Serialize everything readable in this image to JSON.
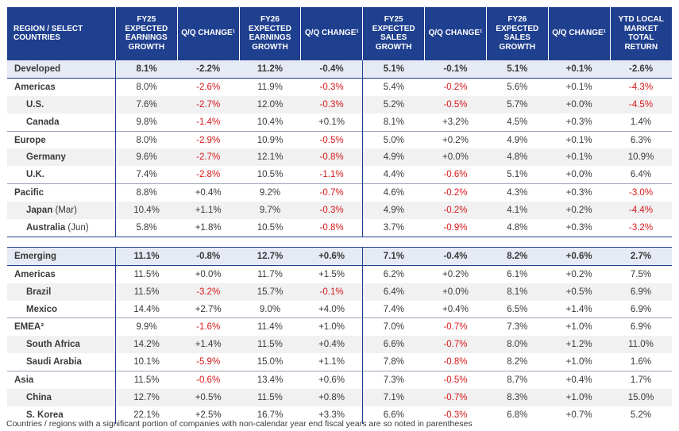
{
  "headers": [
    "REGION / SELECT COUNTRIES",
    "FY25 EXPECTED EARNINGS GROWTH",
    "Q/Q CHANGE¹",
    "FY26 EXPECTED EARNINGS GROWTH",
    "Q/Q CHANGE¹",
    "FY25 EXPECTED SALES GROWTH",
    "Q/Q CHANGE¹",
    "FY26 EXPECTED SALES GROWTH",
    "Q/Q CHANGE¹",
    "YTD LOCAL MARKET TOTAL RETURN"
  ],
  "sections": [
    {
      "summary": {
        "label": "Developed",
        "values": [
          "8.1%",
          "-2.2%",
          "11.2%",
          "-0.4%",
          "5.1%",
          "-0.1%",
          "5.1%",
          "+0.1%",
          "-2.6%"
        ]
      },
      "groups": [
        {
          "rows": [
            {
              "label": "Americas",
              "suffix": "",
              "level": 0,
              "values": [
                "8.0%",
                "-2.6%",
                "11.9%",
                "-0.3%",
                "5.4%",
                "-0.2%",
                "5.6%",
                "+0.1%",
                "-4.3%"
              ]
            },
            {
              "label": "U.S.",
              "suffix": "",
              "level": 1,
              "values": [
                "7.6%",
                "-2.7%",
                "12.0%",
                "-0.3%",
                "5.2%",
                "-0.5%",
                "5.7%",
                "+0.0%",
                "-4.5%"
              ]
            },
            {
              "label": "Canada",
              "suffix": "",
              "level": 1,
              "values": [
                "9.8%",
                "-1.4%",
                "10.4%",
                "+0.1%",
                "8.1%",
                "+3.2%",
                "4.5%",
                "+0.3%",
                "1.4%"
              ]
            }
          ]
        },
        {
          "rows": [
            {
              "label": "Europe",
              "suffix": "",
              "level": 0,
              "values": [
                "8.0%",
                "-2.9%",
                "10.9%",
                "-0.5%",
                "5.0%",
                "+0.2%",
                "4.9%",
                "+0.1%",
                "6.3%"
              ]
            },
            {
              "label": "Germany",
              "suffix": "",
              "level": 1,
              "values": [
                "9.6%",
                "-2.7%",
                "12.1%",
                "-0.8%",
                "4.9%",
                "+0.0%",
                "4.8%",
                "+0.1%",
                "10.9%"
              ]
            },
            {
              "label": "U.K.",
              "suffix": "",
              "level": 1,
              "values": [
                "7.4%",
                "-2.8%",
                "10.5%",
                "-1.1%",
                "4.4%",
                "-0.6%",
                "5.1%",
                "+0.0%",
                "6.4%"
              ]
            }
          ]
        },
        {
          "rows": [
            {
              "label": "Pacific",
              "suffix": "",
              "level": 0,
              "values": [
                "8.8%",
                "+0.4%",
                "9.2%",
                "-0.7%",
                "4.6%",
                "-0.2%",
                "4.3%",
                "+0.3%",
                "-3.0%"
              ]
            },
            {
              "label": "Japan",
              "suffix": " (Mar)",
              "level": 1,
              "values": [
                "10.4%",
                "+1.1%",
                "9.7%",
                "-0.3%",
                "4.9%",
                "-0.2%",
                "4.1%",
                "+0.2%",
                "-4.4%"
              ]
            },
            {
              "label": "Australia",
              "suffix": " (Jun)",
              "level": 1,
              "values": [
                "5.8%",
                "+1.8%",
                "10.5%",
                "-0.8%",
                "3.7%",
                "-0.9%",
                "4.8%",
                "+0.3%",
                "-3.2%"
              ]
            }
          ]
        }
      ]
    },
    {
      "summary": {
        "label": "Emerging",
        "values": [
          "11.1%",
          "-0.8%",
          "12.7%",
          "+0.6%",
          "7.1%",
          "-0.4%",
          "8.2%",
          "+0.6%",
          "2.7%"
        ]
      },
      "groups": [
        {
          "rows": [
            {
              "label": "Americas",
              "suffix": "",
              "level": 0,
              "values": [
                "11.5%",
                "+0.0%",
                "11.7%",
                "+1.5%",
                "6.2%",
                "+0.2%",
                "6.1%",
                "+0.2%",
                "7.5%"
              ]
            },
            {
              "label": "Brazil",
              "suffix": "",
              "level": 1,
              "values": [
                "11.5%",
                "-3.2%",
                "15.7%",
                "-0.1%",
                "6.4%",
                "+0.0%",
                "8.1%",
                "+0.5%",
                "6.9%"
              ]
            },
            {
              "label": "Mexico",
              "suffix": "",
              "level": 1,
              "values": [
                "14.4%",
                "+2.7%",
                "9.0%",
                "+4.0%",
                "7.4%",
                "+0.4%",
                "6.5%",
                "+1.4%",
                "6.9%"
              ]
            }
          ]
        },
        {
          "rows": [
            {
              "label": "EMEA²",
              "suffix": "",
              "level": 0,
              "values": [
                "9.9%",
                "-1.6%",
                "11.4%",
                "+1.0%",
                "7.0%",
                "-0.7%",
                "7.3%",
                "+1.0%",
                "6.9%"
              ]
            },
            {
              "label": "South Africa",
              "suffix": "",
              "level": 1,
              "values": [
                "14.2%",
                "+1.4%",
                "11.5%",
                "+0.4%",
                "6.6%",
                "-0.7%",
                "8.0%",
                "+1.2%",
                "11.0%"
              ]
            },
            {
              "label": "Saudi Arabia",
              "suffix": "",
              "level": 1,
              "values": [
                "10.1%",
                "-5.9%",
                "15.0%",
                "+1.1%",
                "7.8%",
                "-0.8%",
                "8.2%",
                "+1.0%",
                "1.6%"
              ]
            }
          ]
        },
        {
          "rows": [
            {
              "label": "Asia",
              "suffix": "",
              "level": 0,
              "values": [
                "11.5%",
                "-0.6%",
                "13.4%",
                "+0.6%",
                "7.3%",
                "-0.5%",
                "8.7%",
                "+0.4%",
                "1.7%"
              ]
            },
            {
              "label": "China",
              "suffix": "",
              "level": 1,
              "values": [
                "12.7%",
                "+0.5%",
                "11.5%",
                "+0.8%",
                "7.1%",
                "-0.7%",
                "8.3%",
                "+1.0%",
                "15.0%"
              ]
            },
            {
              "label": "S. Korea",
              "suffix": "",
              "level": 1,
              "values": [
                "22.1%",
                "+2.5%",
                "16.7%",
                "+3.3%",
                "6.6%",
                "-0.3%",
                "6.8%",
                "+0.7%",
                "5.2%"
              ]
            }
          ]
        }
      ]
    }
  ],
  "footnote": "Countries / regions with a significant portion of companies with non-calendar year end fiscal years are so noted in parentheses",
  "colors": {
    "header_bg": "#1f3f8f",
    "negative": "#d7191c",
    "summary_bg": "#e6eaf4",
    "stripe_bg": "#f1f1f1"
  }
}
